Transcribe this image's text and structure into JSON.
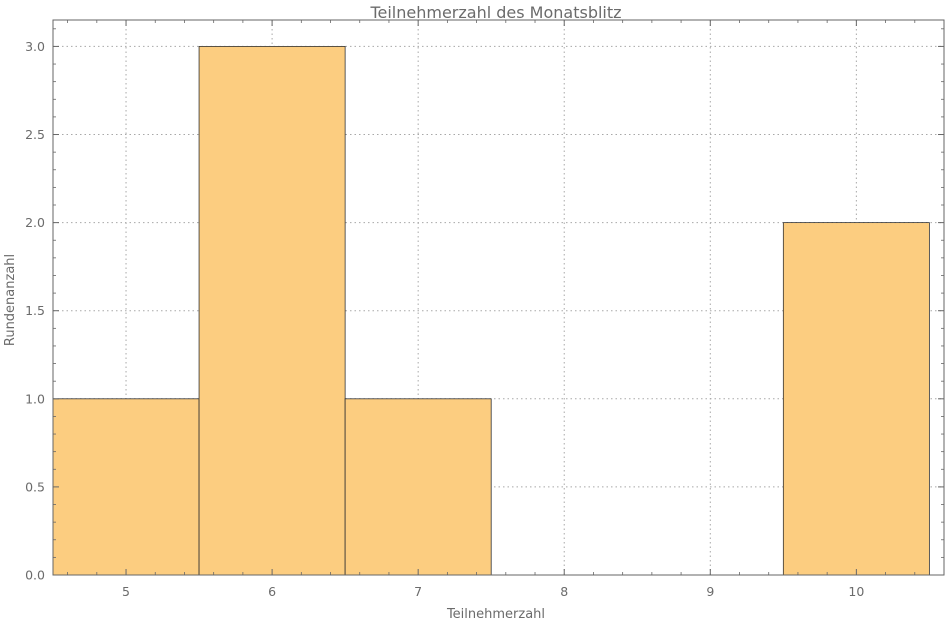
{
  "chart_data": {
    "type": "bar",
    "title": "Teilnehmerzahl des Monatsblitz",
    "xlabel": "Teilnehmerzahl",
    "ylabel": "Rundenanzahl",
    "bins": [
      {
        "x": 5,
        "value": 1
      },
      {
        "x": 6,
        "value": 3
      },
      {
        "x": 7,
        "value": 1
      },
      {
        "x": 10,
        "value": 2
      }
    ],
    "xlim": [
      4.5,
      10.6
    ],
    "ylim": [
      0,
      3.15
    ],
    "x_ticks": [
      5,
      6,
      7,
      8,
      9,
      10
    ],
    "x_tick_labels": [
      "5",
      "6",
      "7",
      "8",
      "9",
      "10"
    ],
    "y_ticks": [
      0,
      0.5,
      1,
      1.5,
      2,
      2.5,
      3
    ],
    "y_tick_labels": [
      "0.0",
      "0.5",
      "1.0",
      "1.5",
      "2.0",
      "2.5",
      "3.0"
    ],
    "bar_width": 1,
    "grid": true,
    "grid_style": "dotted",
    "colors": {
      "bar_fill": "#fccd80",
      "bar_stroke": "#333333",
      "axis": "#666666",
      "grid": "#a8a8a8",
      "text": "#6b6b6b"
    }
  }
}
